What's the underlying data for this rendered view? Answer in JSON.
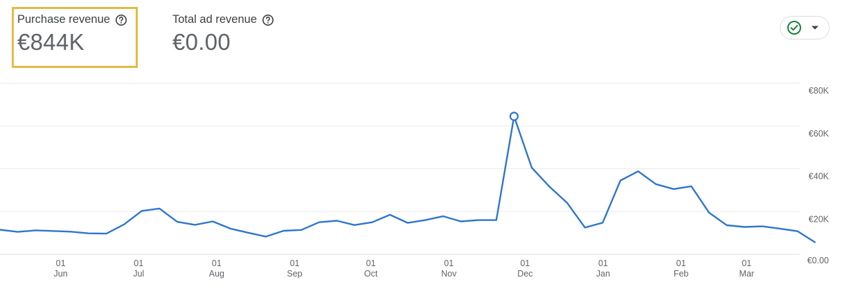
{
  "metrics": {
    "purchase": {
      "label": "Purchase revenue",
      "value": "€844K",
      "selected": true
    },
    "ad": {
      "label": "Total ad revenue",
      "value": "€0.00"
    }
  },
  "status": {
    "icon": "check-circle-icon",
    "color": "#188038"
  },
  "colors": {
    "line": "#2e75cc",
    "highlight": "#e2bb42",
    "grid": "#e8eaed"
  },
  "chart_data": {
    "type": "line",
    "title": "",
    "xlabel": "",
    "ylabel": "",
    "ylim": [
      0,
      80000
    ],
    "y_ticks": [
      "€0.00",
      "€20K",
      "€40K",
      "€60K",
      "€80K"
    ],
    "y_tick_values": [
      0,
      20000,
      40000,
      60000,
      80000
    ],
    "x_ticks": [
      {
        "day": "01",
        "month": "Jun",
        "index": 3.5
      },
      {
        "day": "01",
        "month": "Jul",
        "index": 7.9
      },
      {
        "day": "01",
        "month": "Aug",
        "index": 12.3
      },
      {
        "day": "01",
        "month": "Sep",
        "index": 16.7
      },
      {
        "day": "01",
        "month": "Oct",
        "index": 21.0
      },
      {
        "day": "01",
        "month": "Nov",
        "index": 25.4
      },
      {
        "day": "01",
        "month": "Dec",
        "index": 29.7
      },
      {
        "day": "01",
        "month": "Jan",
        "index": 34.1
      },
      {
        "day": "01",
        "month": "Feb",
        "index": 38.5
      },
      {
        "day": "01",
        "month": "Mar",
        "index": 42.2
      }
    ],
    "grid": true,
    "series": [
      {
        "values": [
          11500,
          10500,
          11200,
          10900,
          10600,
          9800,
          9700,
          14000,
          20300,
          21400,
          15200,
          13800,
          15400,
          12000,
          10100,
          8300,
          11000,
          11400,
          15000,
          15700,
          13700,
          15000,
          18500,
          14700,
          16000,
          17800,
          15400,
          16000,
          16000,
          64500,
          40500,
          31600,
          24000,
          12500,
          14800,
          34500,
          38800,
          32800,
          30500,
          31800,
          19500,
          13600,
          12800,
          13100,
          12000,
          10800,
          5500
        ],
        "highlight_index": 29
      }
    ]
  }
}
